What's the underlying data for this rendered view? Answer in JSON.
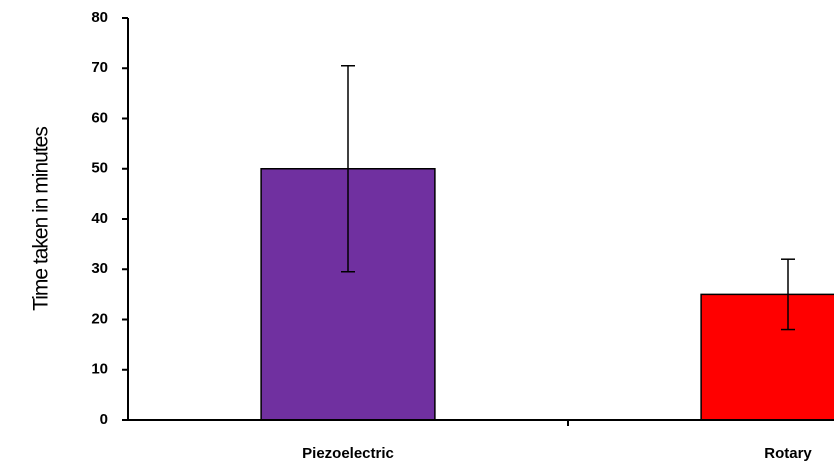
{
  "chart_data": {
    "type": "bar",
    "y_label": "Time taken in minutes",
    "categories": [
      "Piezoelectric",
      "Rotary"
    ],
    "values": [
      50,
      25
    ],
    "errors": [
      20.5,
      7
    ],
    "colors": [
      "#7030a0",
      "#ff0000"
    ],
    "ylim": [
      0,
      80
    ],
    "yticks": [
      0,
      10,
      20,
      30,
      40,
      50,
      60,
      70,
      80
    ],
    "grid": false
  }
}
